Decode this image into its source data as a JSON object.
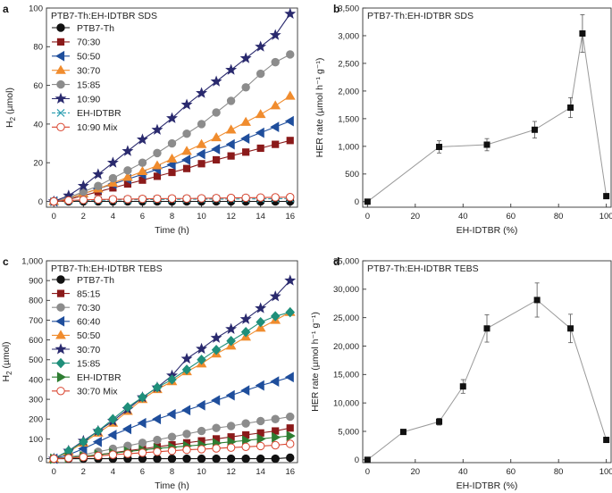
{
  "chart_data": [
    {
      "panel": "a",
      "type": "line",
      "title": "PTB7-Th:EH-IDTBR SDS",
      "xlabel": "Time (h)",
      "ylabel": "H2 (µmol)",
      "ylabel_main": "H",
      "ylabel_sub": "2",
      "ylabel_rest": " (µmol)",
      "xlim": [
        -0.5,
        16.5
      ],
      "ylim": [
        -3,
        100
      ],
      "xticks": [
        0,
        2,
        4,
        6,
        8,
        10,
        12,
        14,
        16
      ],
      "yticks": [
        0,
        20,
        40,
        60,
        80,
        100
      ],
      "ytick_labels": [
        "0",
        "20",
        "40",
        "60",
        "80",
        "100"
      ],
      "x": [
        0,
        1,
        2,
        3,
        4,
        5,
        6,
        7,
        8,
        9,
        10,
        11,
        12,
        13,
        14,
        15,
        16
      ],
      "series": [
        {
          "name": "PTB7-Th",
          "color": "#111111",
          "marker": "circle",
          "filled": true,
          "values": [
            0,
            0,
            0,
            0,
            0,
            0,
            0,
            0,
            0,
            0,
            0,
            0,
            0,
            0,
            0,
            0,
            0
          ]
        },
        {
          "name": "70:30",
          "color": "#8b1a1a",
          "marker": "square",
          "filled": true,
          "values": [
            0,
            1,
            3,
            5,
            7,
            9,
            11,
            13,
            15,
            17,
            19.5,
            21.5,
            23.5,
            25.5,
            27.5,
            29.5,
            31.5
          ]
        },
        {
          "name": "50:50",
          "color": "#1f4e9c",
          "marker": "triangle-left",
          "filled": true,
          "values": [
            0,
            1.5,
            4,
            6.5,
            9,
            11.5,
            14,
            16.5,
            19,
            21.5,
            24.5,
            27,
            29.5,
            32.5,
            35.5,
            38.5,
            41.5
          ]
        },
        {
          "name": "30:70",
          "color": "#f08c2e",
          "marker": "triangle-up",
          "filled": true,
          "values": [
            0,
            1.5,
            4,
            6.5,
            9.5,
            12.5,
            15.5,
            18.5,
            22,
            26,
            29.5,
            33,
            37,
            41,
            45,
            49.5,
            54.5
          ]
        },
        {
          "name": "15:85",
          "color": "#8c8c8c",
          "marker": "circle",
          "filled": true,
          "values": [
            0,
            2,
            5,
            8,
            12,
            16,
            20,
            25,
            30,
            35,
            40,
            46,
            52,
            59,
            66,
            72,
            76
          ]
        },
        {
          "name": "10:90",
          "color": "#2a2a6e",
          "marker": "star",
          "filled": true,
          "values": [
            0,
            3,
            8,
            14,
            20,
            26,
            32,
            37,
            43,
            50,
            56,
            62,
            68,
            74,
            80,
            86,
            97
          ]
        },
        {
          "name": "EH-IDTBR",
          "color": "#2a9db0",
          "marker": "x",
          "filled": false,
          "dashed": true,
          "values": [
            0,
            0.3,
            0.5,
            0.6,
            0.7,
            0.8,
            0.9,
            1,
            1,
            1.1,
            1.1,
            1.2,
            1.2,
            1.3,
            1.3,
            1.4,
            1.5
          ]
        },
        {
          "name": "10:90 Mix",
          "color": "#d9442e",
          "marker": "circle",
          "filled": false,
          "values": [
            0,
            0.5,
            0.8,
            1,
            1.1,
            1.2,
            1.3,
            1.4,
            1.5,
            1.5,
            1.6,
            1.7,
            1.8,
            1.9,
            2,
            2.1,
            2.2
          ]
        }
      ]
    },
    {
      "panel": "b",
      "type": "scatter",
      "title": "PTB7-Th:EH-IDTBR SDS",
      "xlabel": "EH-IDTBR (%)",
      "ylabel": "HER rate (µmol h⁻¹ g⁻¹)",
      "xlim": [
        -2,
        102
      ],
      "ylim": [
        -100,
        3500
      ],
      "xticks": [
        0,
        20,
        40,
        60,
        80,
        100
      ],
      "yticks": [
        0,
        500,
        1000,
        1500,
        2000,
        2500,
        3000,
        3500
      ],
      "ytick_labels": [
        "0",
        "500",
        "1,000",
        "1,500",
        "2,000",
        "2,500",
        "3,000",
        "3,500"
      ],
      "x": [
        0,
        30,
        50,
        70,
        85,
        90,
        100
      ],
      "values": [
        0,
        990,
        1030,
        1300,
        1700,
        3040,
        100
      ],
      "errors": [
        0,
        110,
        110,
        150,
        180,
        340,
        0
      ]
    },
    {
      "panel": "c",
      "type": "line",
      "title": "PTB7-Th:EH-IDTBR TEBS",
      "xlabel": "Time (h)",
      "ylabel": "H2 (µmol)",
      "ylabel_main": "H",
      "ylabel_sub": "2",
      "ylabel_rest": " (µmol)",
      "xlim": [
        -0.5,
        16.5
      ],
      "ylim": [
        -20,
        1000
      ],
      "xticks": [
        0,
        2,
        4,
        6,
        8,
        10,
        12,
        14,
        16
      ],
      "yticks": [
        0,
        100,
        200,
        300,
        400,
        500,
        600,
        700,
        800,
        900,
        1000
      ],
      "ytick_labels": [
        "0",
        "100",
        "200",
        "300",
        "400",
        "500",
        "600",
        "700",
        "800",
        "900",
        "1,000"
      ],
      "x": [
        0,
        1,
        2,
        3,
        4,
        5,
        6,
        7,
        8,
        9,
        10,
        11,
        12,
        13,
        14,
        15,
        16
      ],
      "series": [
        {
          "name": "PTB7-Th",
          "color": "#111111",
          "marker": "circle",
          "filled": true,
          "values": [
            0,
            0,
            0,
            0,
            0,
            0,
            0,
            0,
            0,
            0,
            0,
            0,
            0,
            0,
            0,
            0,
            5
          ]
        },
        {
          "name": "85:15",
          "color": "#8b1a1a",
          "marker": "square",
          "filled": true,
          "values": [
            0,
            5,
            12,
            20,
            30,
            40,
            50,
            60,
            70,
            80,
            90,
            100,
            110,
            120,
            130,
            140,
            155
          ]
        },
        {
          "name": "70:30",
          "color": "#8c8c8c",
          "marker": "circle",
          "filled": true,
          "values": [
            0,
            8,
            20,
            35,
            50,
            65,
            80,
            95,
            110,
            125,
            140,
            155,
            165,
            178,
            190,
            200,
            212
          ]
        },
        {
          "name": "60:40",
          "color": "#1f4e9c",
          "marker": "triangle-left",
          "filled": true,
          "values": [
            0,
            20,
            50,
            85,
            120,
            150,
            180,
            200,
            225,
            245,
            270,
            295,
            320,
            345,
            370,
            390,
            412
          ]
        },
        {
          "name": "50:50",
          "color": "#f08c2e",
          "marker": "triangle-up",
          "filled": true,
          "values": [
            0,
            35,
            80,
            130,
            180,
            240,
            300,
            350,
            390,
            440,
            480,
            530,
            570,
            615,
            660,
            700,
            740
          ]
        },
        {
          "name": "30:70",
          "color": "#2a2a6e",
          "marker": "star",
          "filled": true,
          "values": [
            0,
            40,
            90,
            140,
            190,
            250,
            310,
            360,
            420,
            505,
            555,
            610,
            655,
            705,
            760,
            820,
            900
          ]
        },
        {
          "name": "15:85",
          "color": "#1f8f7a",
          "marker": "diamond",
          "filled": true,
          "values": [
            0,
            40,
            85,
            140,
            200,
            260,
            310,
            360,
            400,
            450,
            500,
            550,
            595,
            640,
            690,
            720,
            740
          ]
        },
        {
          "name": "EH-IDTBR",
          "color": "#2e7d32",
          "marker": "triangle-right",
          "filled": true,
          "values": [
            0,
            5,
            12,
            20,
            28,
            36,
            44,
            52,
            58,
            64,
            70,
            78,
            85,
            92,
            100,
            108,
            115
          ]
        },
        {
          "name": "30:70 Mix",
          "color": "#d9442e",
          "marker": "circle",
          "filled": false,
          "values": [
            0,
            3,
            8,
            14,
            20,
            25,
            30,
            35,
            40,
            45,
            48,
            52,
            56,
            60,
            64,
            68,
            75
          ]
        }
      ]
    },
    {
      "panel": "d",
      "type": "scatter",
      "title": "PTB7-Th:EH-IDTBR TEBS",
      "xlabel": "EH-IDTBR (%)",
      "ylabel": "HER rate (µmol h⁻¹ g⁻¹)",
      "xlim": [
        -2,
        102
      ],
      "ylim": [
        -500,
        35000
      ],
      "xticks": [
        0,
        20,
        40,
        60,
        80,
        100
      ],
      "yticks": [
        0,
        5000,
        10000,
        15000,
        20000,
        25000,
        30000,
        35000
      ],
      "ytick_labels": [
        "0",
        "5,000",
        "10,000",
        "15,000",
        "20,000",
        "25,000",
        "30,000",
        "35,000"
      ],
      "x": [
        0,
        15,
        30,
        40,
        50,
        71,
        85,
        100
      ],
      "values": [
        0,
        4900,
        6700,
        12900,
        23100,
        28100,
        23100,
        3500
      ],
      "errors": [
        0,
        400,
        600,
        1200,
        2400,
        3000,
        2500,
        0
      ]
    }
  ]
}
